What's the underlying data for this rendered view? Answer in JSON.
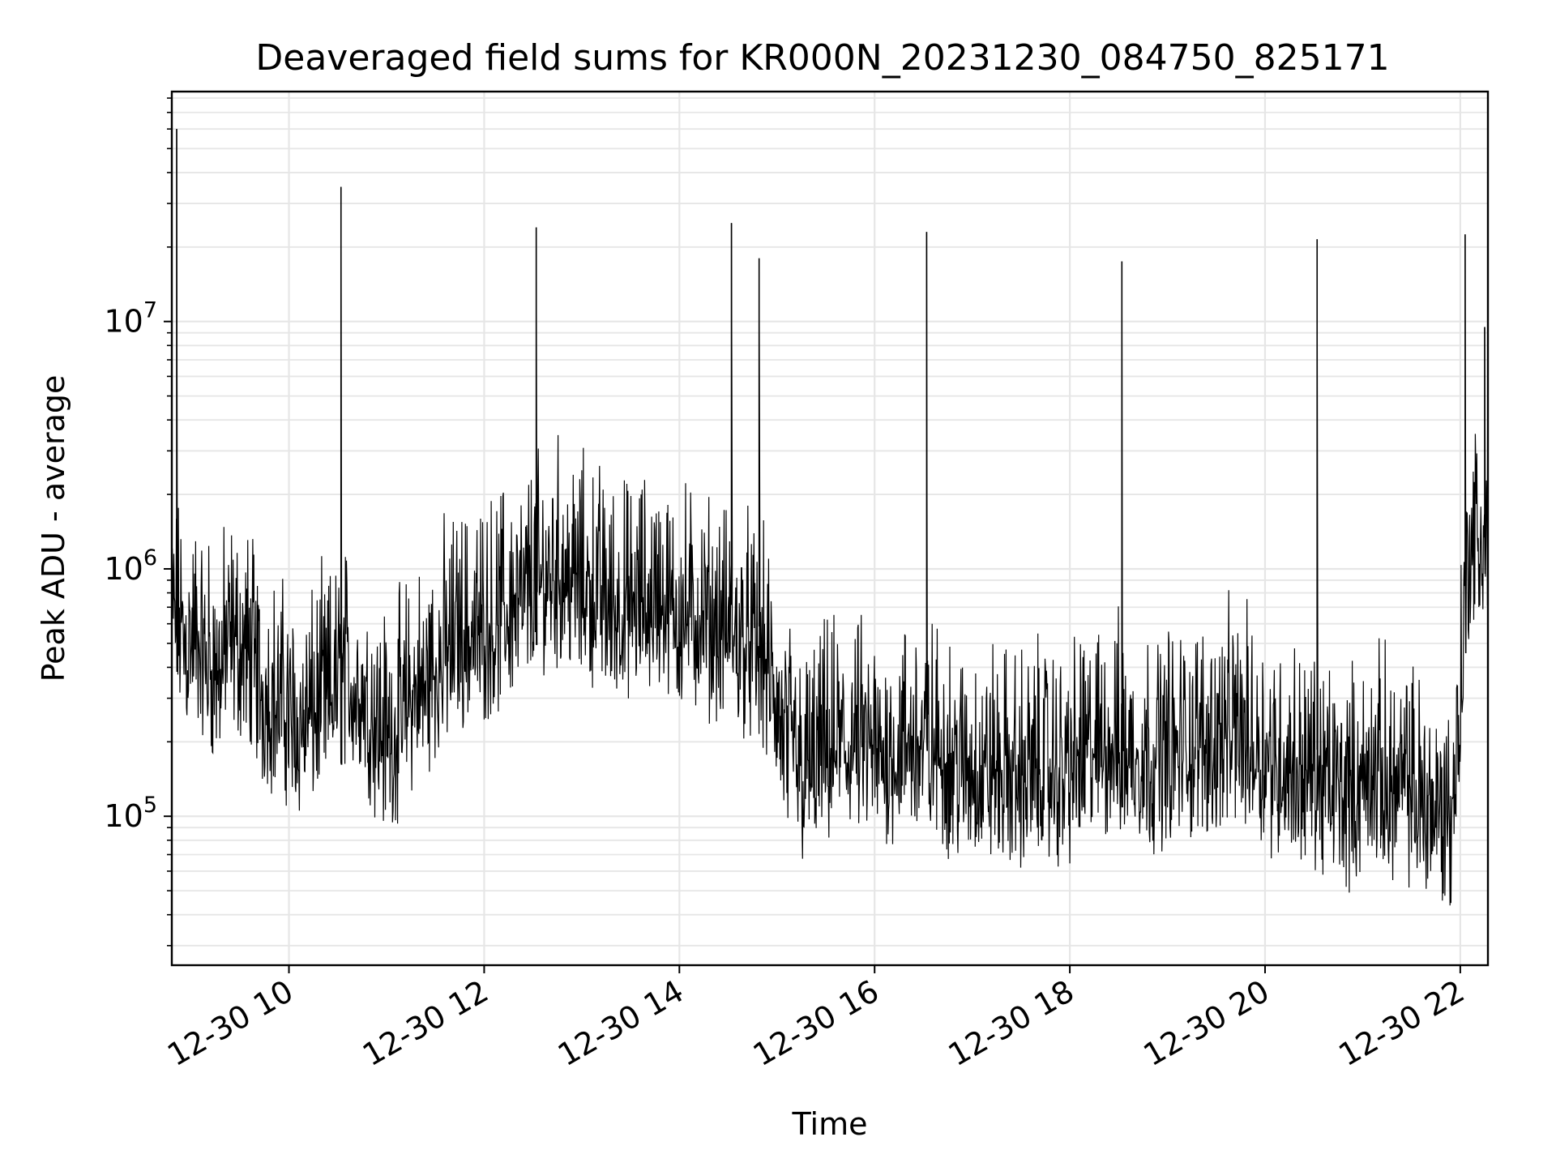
{
  "chart_data": {
    "type": "line",
    "title": "Deaveraged field sums for KR000N_20231230_084750_825171",
    "xlabel": "Time",
    "ylabel": "Peak ADU - average",
    "x_scale": "time",
    "y_scale": "log",
    "xlim": [
      "2023-12-30 08:48",
      "2023-12-30 22:17"
    ],
    "ylim": [
      25000,
      85000000
    ],
    "x_ticks": [
      {
        "t": "2023-12-30 10:00",
        "label": "12-30 10"
      },
      {
        "t": "2023-12-30 12:00",
        "label": "12-30 12"
      },
      {
        "t": "2023-12-30 14:00",
        "label": "12-30 14"
      },
      {
        "t": "2023-12-30 16:00",
        "label": "12-30 16"
      },
      {
        "t": "2023-12-30 18:00",
        "label": "12-30 18"
      },
      {
        "t": "2023-12-30 20:00",
        "label": "12-30 20"
      },
      {
        "t": "2023-12-30 22:00",
        "label": "12-30 22"
      }
    ],
    "y_ticks": [
      {
        "value": 100000,
        "base": "10",
        "exp": "5"
      },
      {
        "value": 1000000,
        "base": "10",
        "exp": "6"
      },
      {
        "value": 10000000,
        "base": "10",
        "exp": "7"
      }
    ],
    "grid": true,
    "line_color": "#000000",
    "grid_color": "#e6e6e6",
    "series": [
      {
        "x": [
          "2023-12-30 08:48",
          "2023-12-30 08:55",
          "2023-12-30 09:05",
          "2023-12-30 09:15",
          "2023-12-30 09:25",
          "2023-12-30 09:35",
          "2023-12-30 09:45",
          "2023-12-30 09:55",
          "2023-12-30 10:05",
          "2023-12-30 10:15",
          "2023-12-30 10:25",
          "2023-12-30 10:35",
          "2023-12-30 10:45",
          "2023-12-30 10:55",
          "2023-12-30 11:05",
          "2023-12-30 11:15",
          "2023-12-30 11:25",
          "2023-12-30 11:35",
          "2023-12-30 11:45",
          "2023-12-30 11:55",
          "2023-12-30 12:05",
          "2023-12-30 12:15",
          "2023-12-30 12:25",
          "2023-12-30 12:35",
          "2023-12-30 12:45",
          "2023-12-30 12:55",
          "2023-12-30 13:05",
          "2023-12-30 13:15",
          "2023-12-30 13:25",
          "2023-12-30 13:35",
          "2023-12-30 13:45",
          "2023-12-30 13:55",
          "2023-12-30 14:05",
          "2023-12-30 14:15",
          "2023-12-30 14:25",
          "2023-12-30 14:35",
          "2023-12-30 14:45",
          "2023-12-30 14:55",
          "2023-12-30 15:05",
          "2023-12-30 15:15",
          "2023-12-30 15:25",
          "2023-12-30 15:35",
          "2023-12-30 15:45",
          "2023-12-30 15:55",
          "2023-12-30 16:05",
          "2023-12-30 16:15",
          "2023-12-30 16:25",
          "2023-12-30 16:35",
          "2023-12-30 16:45",
          "2023-12-30 16:55",
          "2023-12-30 17:05",
          "2023-12-30 17:15",
          "2023-12-30 17:25",
          "2023-12-30 17:35",
          "2023-12-30 17:45",
          "2023-12-30 17:55",
          "2023-12-30 18:05",
          "2023-12-30 18:15",
          "2023-12-30 18:25",
          "2023-12-30 18:35",
          "2023-12-30 18:45",
          "2023-12-30 18:55",
          "2023-12-30 19:05",
          "2023-12-30 19:15",
          "2023-12-30 19:25",
          "2023-12-30 19:35",
          "2023-12-30 19:45",
          "2023-12-30 19:55",
          "2023-12-30 20:05",
          "2023-12-30 20:15",
          "2023-12-30 20:25",
          "2023-12-30 20:35",
          "2023-12-30 20:45",
          "2023-12-30 20:55",
          "2023-12-30 21:05",
          "2023-12-30 21:15",
          "2023-12-30 21:25",
          "2023-12-30 21:35",
          "2023-12-30 21:45",
          "2023-12-30 21:55",
          "2023-12-30 22:00",
          "2023-12-30 22:05",
          "2023-12-30 22:10",
          "2023-12-30 22:17"
        ],
        "y": [
          900000,
          700000,
          650000,
          500000,
          700000,
          600000,
          400000,
          380000,
          300000,
          350000,
          400000,
          500000,
          400000,
          300000,
          280000,
          400000,
          450000,
          600000,
          700000,
          750000,
          800000,
          900000,
          1000000,
          1200000,
          1300000,
          1200000,
          1100000,
          1000000,
          900000,
          950000,
          1000000,
          900000,
          850000,
          800000,
          750000,
          700000,
          650000,
          500000,
          250000,
          200000,
          220000,
          250000,
          250000,
          240000,
          230000,
          250000,
          270000,
          250000,
          220000,
          200000,
          210000,
          200000,
          190000,
          200000,
          210000,
          190000,
          220000,
          250000,
          260000,
          240000,
          230000,
          230000,
          240000,
          250000,
          260000,
          270000,
          280000,
          260000,
          220000,
          210000,
          200000,
          180000,
          170000,
          160000,
          200000,
          180000,
          170000,
          160000,
          140000,
          130000,
          400000,
          1500000,
          1800000,
          1600000
        ],
        "noise_range": [
          0.3,
          3.2
        ],
        "spikes": [
          {
            "t": "2023-12-30 08:51",
            "y": 60000000
          },
          {
            "t": "2023-12-30 10:32",
            "y": 35000000
          },
          {
            "t": "2023-12-30 12:32",
            "y": 24000000
          },
          {
            "t": "2023-12-30 14:32",
            "y": 25000000
          },
          {
            "t": "2023-12-30 14:49",
            "y": 18000000
          },
          {
            "t": "2023-12-30 16:32",
            "y": 23000000
          },
          {
            "t": "2023-12-30 18:32",
            "y": 17500000
          },
          {
            "t": "2023-12-30 20:32",
            "y": 21500000
          },
          {
            "t": "2023-12-30 22:03",
            "y": 22500000
          },
          {
            "t": "2023-12-30 22:15",
            "y": 9500000
          }
        ]
      }
    ]
  }
}
